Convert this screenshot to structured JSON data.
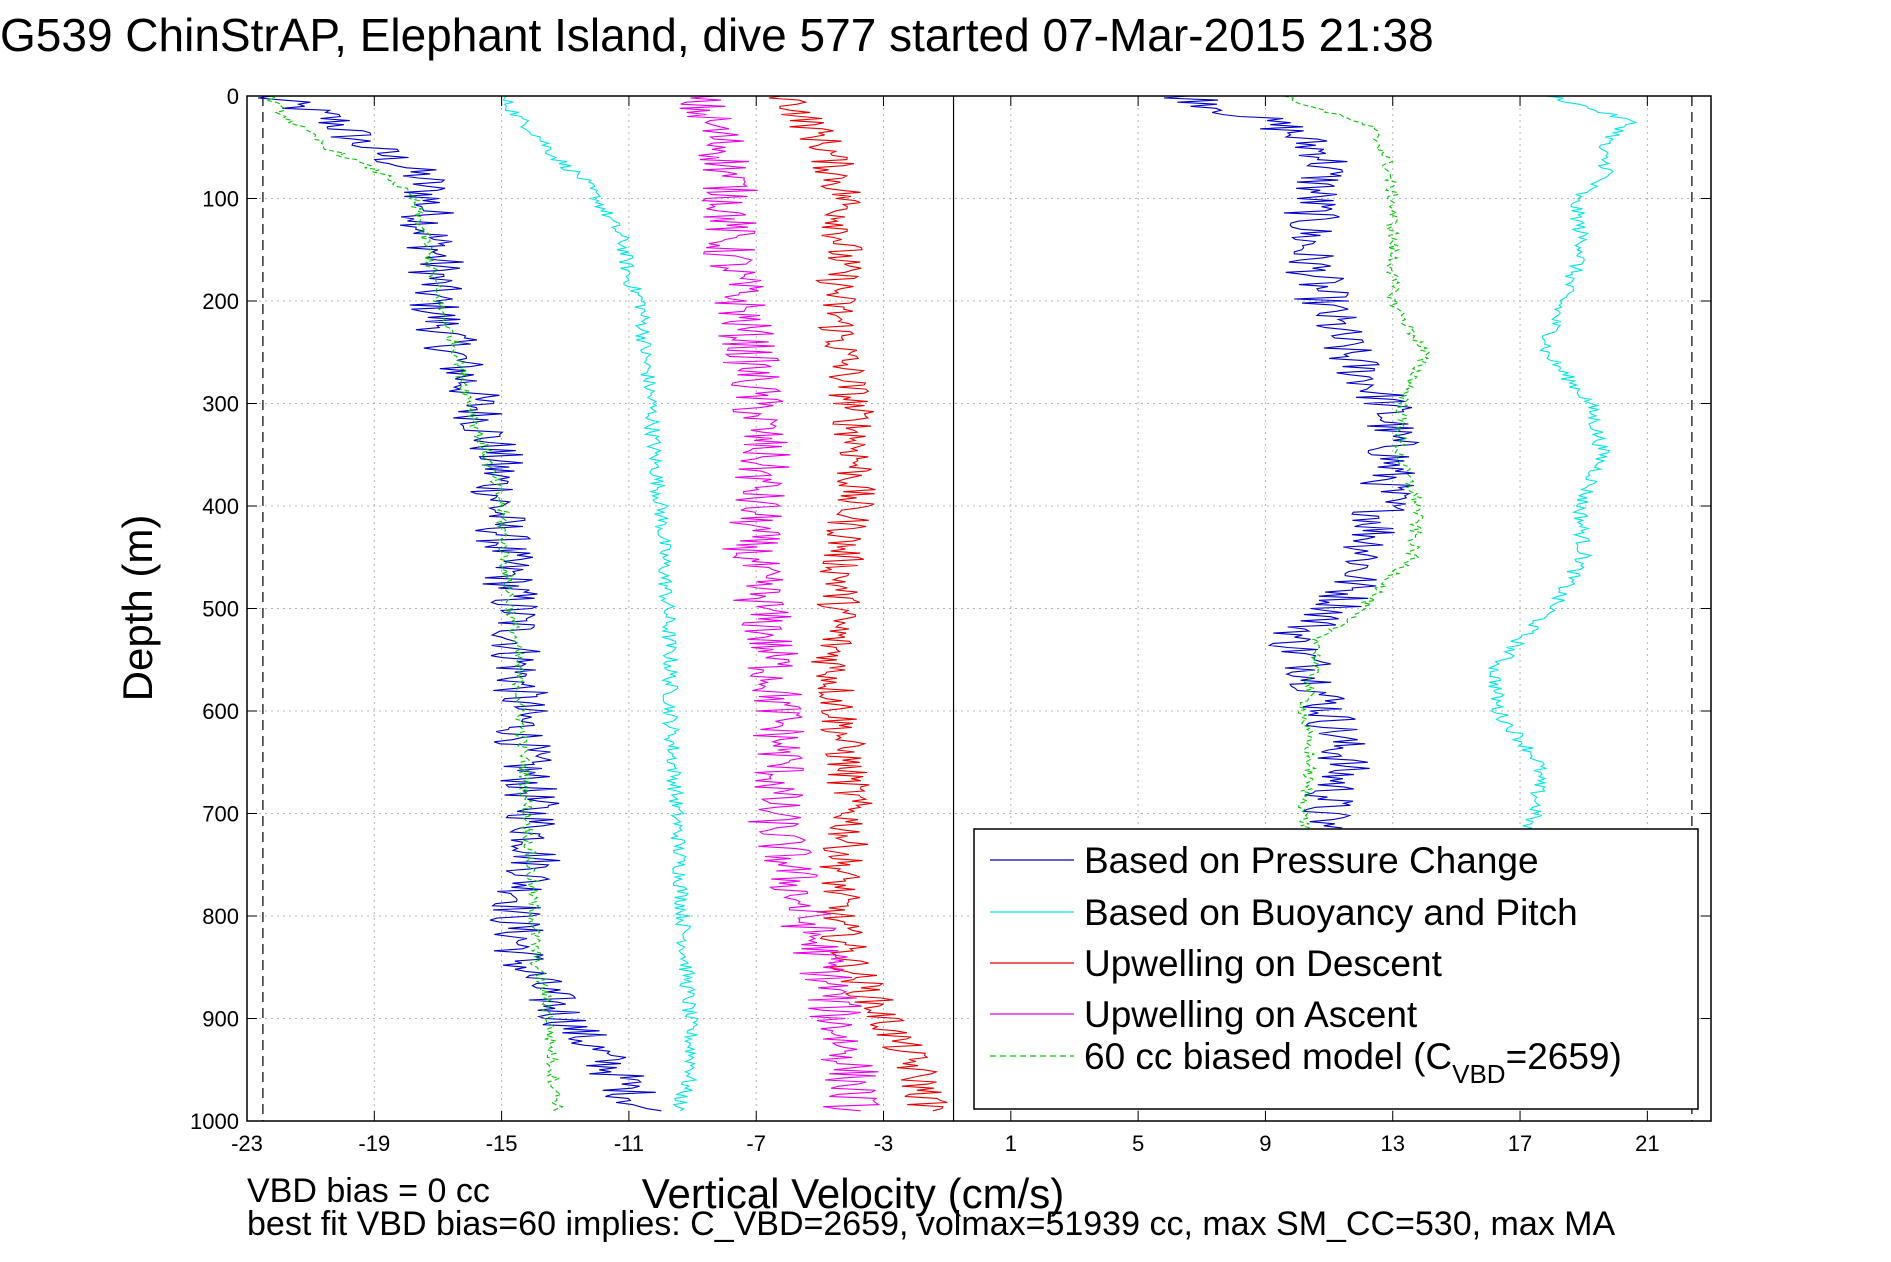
{
  "title": "G539 ChinStrAP, Elephant Island, dive 577 started 07-Mar-2015 21:38",
  "footer": {
    "vbd_note": "VBD bias = 0 cc",
    "fit_note": "best fit VBD bias=60 implies: C_VBD=2659, volmax=51939 cc, max SM_CC=530, max MA"
  },
  "chart_data": {
    "type": "line",
    "title": "G539 ChinStrAP, Elephant Island, dive 577 started 07-Mar-2015 21:38",
    "xlabel": "Vertical Velocity (cm/s)",
    "ylabel": "Depth (m)",
    "xlim": [
      -23,
      23
    ],
    "ylim": [
      0,
      1000
    ],
    "y_reversed": true,
    "grid": true,
    "x_ticks": [
      "-23",
      "-19",
      "-15",
      "-11",
      "-7",
      "-3",
      "1",
      "5",
      "9",
      "13",
      "17",
      "21"
    ],
    "y_ticks": [
      "0",
      "100",
      "200",
      "300",
      "400",
      "500",
      "600",
      "700",
      "800",
      "900",
      "1000"
    ],
    "legend_position": "bottom-right",
    "vertical_markers": [
      -22.5,
      -0.8,
      22.4
    ],
    "series": [
      {
        "name": "Based on Pressure Change",
        "color": "#0000c8",
        "style": "solid",
        "segments": [
          {
            "depth": [
              0,
              10,
              20,
              30,
              45,
              60,
              80,
              100,
              130,
              160,
              200,
              250,
              300,
              350,
              400,
              450,
              500,
              550,
              600,
              650,
              700,
              750,
              800,
              850,
              900,
              950,
              990
            ],
            "velocity": [
              -22.5,
              -21.5,
              -20.5,
              -20.0,
              -19.5,
              -18.5,
              -17.5,
              -17.3,
              -17.3,
              -17.0,
              -17.2,
              -16.5,
              -15.8,
              -15.2,
              -15.1,
              -14.9,
              -14.6,
              -14.5,
              -14.4,
              -14.3,
              -14.0,
              -13.9,
              -14.6,
              -14.3,
              -13.0,
              -11.5,
              -10.5
            ]
          },
          {
            "depth": [
              0,
              30,
              60,
              100,
              150,
              200,
              250,
              300,
              350,
              400,
              450,
              500,
              530,
              560,
              600,
              650,
              700,
              720
            ],
            "velocity": [
              6.5,
              9.5,
              11.0,
              10.5,
              10.3,
              10.8,
              11.5,
              12.8,
              13.0,
              12.7,
              12.2,
              11.3,
              9.8,
              10.5,
              11.0,
              11.5,
              10.8,
              11.0
            ]
          }
        ]
      },
      {
        "name": "Based on Buoyancy and Pitch",
        "color": "#00e5e5",
        "style": "solid",
        "segments": [
          {
            "depth": [
              0,
              20,
              40,
              60,
              80,
              100,
              140,
              180,
              200,
              250,
              300,
              350,
              400,
              450,
              500,
              550,
              600,
              650,
              700,
              750,
              800,
              850,
              900,
              950,
              990
            ],
            "velocity": [
              -15.0,
              -14.5,
              -13.8,
              -13.3,
              -12.5,
              -12.0,
              -11.2,
              -11.0,
              -10.6,
              -10.5,
              -10.3,
              -10.2,
              -10.0,
              -9.9,
              -9.8,
              -9.7,
              -9.7,
              -9.6,
              -9.5,
              -9.4,
              -9.3,
              -9.2,
              -9.1,
              -9.0,
              -9.5
            ]
          },
          {
            "depth": [
              0,
              25,
              50,
              75,
              100,
              150,
              200,
              250,
              300,
              350,
              400,
              450,
              500,
              530,
              560,
              600,
              650,
              700,
              720
            ],
            "velocity": [
              18.0,
              20.5,
              19.5,
              19.8,
              18.7,
              19.0,
              18.3,
              17.8,
              19.2,
              19.6,
              18.9,
              19.0,
              18.0,
              17.0,
              16.2,
              16.3,
              17.6,
              17.5,
              17.0
            ]
          }
        ]
      },
      {
        "name": "Upwelling on Descent",
        "color": "#e60000",
        "style": "solid",
        "segments": [
          {
            "depth": [
              0,
              50,
              100,
              150,
              200,
              250,
              300,
              350,
              400,
              450,
              500,
              550,
              600,
              650,
              700,
              750,
              800,
              850,
              900,
              950,
              990
            ],
            "velocity": [
              -6.0,
              -4.8,
              -4.2,
              -4.3,
              -4.5,
              -4.3,
              -4.0,
              -3.8,
              -4.0,
              -4.3,
              -4.4,
              -4.6,
              -4.4,
              -4.2,
              -4.0,
              -4.3,
              -4.5,
              -4.0,
              -3.0,
              -2.0,
              -1.5
            ]
          }
        ]
      },
      {
        "name": "Upwelling on Ascent",
        "color": "#e600e6",
        "style": "solid",
        "segments": [
          {
            "depth": [
              0,
              50,
              100,
              150,
              200,
              250,
              300,
              350,
              400,
              450,
              500,
              550,
              600,
              650,
              700,
              750,
              800,
              850,
              900,
              950,
              990
            ],
            "velocity": [
              -9.0,
              -8.0,
              -7.8,
              -7.9,
              -7.5,
              -7.2,
              -7.0,
              -6.8,
              -7.0,
              -7.2,
              -6.8,
              -6.5,
              -6.3,
              -6.2,
              -6.5,
              -6.0,
              -5.5,
              -4.8,
              -4.5,
              -4.0,
              -4.0
            ]
          }
        ]
      },
      {
        "name": "60 cc biased model (CVBD=2659)",
        "color": "#00c800",
        "style": "dashed",
        "segments": [
          {
            "depth": [
              0,
              20,
              50,
              80,
              100,
              150,
              200,
              250,
              300,
              350,
              400,
              450,
              500,
              550,
              600,
              650,
              700,
              750,
              800,
              850,
              880,
              900,
              950,
              990
            ],
            "velocity": [
              -22.3,
              -21.8,
              -20.5,
              -18.5,
              -17.8,
              -17.3,
              -17.0,
              -16.4,
              -16.0,
              -15.5,
              -15.0,
              -14.9,
              -14.7,
              -14.5,
              -14.4,
              -14.3,
              -14.2,
              -14.1,
              -14.0,
              -13.9,
              -13.6,
              -13.5,
              -13.4,
              -13.2
            ]
          },
          {
            "depth": [
              0,
              30,
              60,
              100,
              150,
              200,
              250,
              300,
              350,
              400,
              450,
              500,
              530,
              560,
              600,
              650,
              700,
              720
            ],
            "velocity": [
              9.5,
              12.3,
              12.8,
              13.0,
              13.0,
              13.0,
              14.0,
              13.3,
              13.2,
              13.8,
              13.6,
              12.0,
              10.7,
              10.5,
              10.2,
              10.4,
              10.2,
              10.3
            ]
          }
        ]
      }
    ],
    "legend": [
      {
        "label": "Based on Pressure Change",
        "color": "#0000c8",
        "style": "solid"
      },
      {
        "label": "Based on Buoyancy and Pitch",
        "color": "#00e5e5",
        "style": "solid"
      },
      {
        "label": "Upwelling on Descent",
        "color": "#e60000",
        "style": "solid"
      },
      {
        "label": "Upwelling on Ascent",
        "color": "#e600e6",
        "style": "solid"
      },
      {
        "label": "60 cc biased model (C",
        "sub": "VBD",
        "suffix": "=2659)",
        "color": "#00c800",
        "style": "dashed"
      }
    ]
  }
}
